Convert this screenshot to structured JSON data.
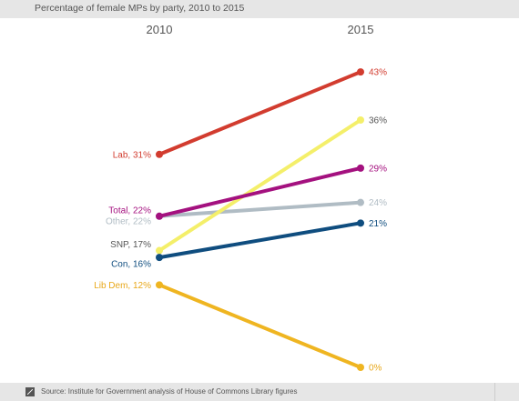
{
  "chart_data": {
    "type": "line",
    "title": "Percentage of female MPs by party, 2010 to 2015",
    "x": [
      "2010",
      "2015"
    ],
    "ylim": [
      0,
      45
    ],
    "series": [
      {
        "name": "Lab",
        "values": [
          31,
          43
        ],
        "color": "#d23c2f",
        "start_label": "Lab, 31%",
        "end_label": "43%"
      },
      {
        "name": "Total",
        "values": [
          22,
          29
        ],
        "color": "#a4117f",
        "start_label": "Total, 22%",
        "end_label": "29%"
      },
      {
        "name": "Other",
        "values": [
          22,
          24
        ],
        "color": "#b0bcc4",
        "start_label": "Other, 22%",
        "end_label": "24%"
      },
      {
        "name": "SNP",
        "values": [
          17,
          36
        ],
        "color": "#f4ef6a",
        "start_label": "SNP, 17%",
        "end_label": "36%"
      },
      {
        "name": "Con",
        "values": [
          16,
          21
        ],
        "color": "#0f4d7f",
        "start_label": "Con, 16%",
        "end_label": "21%"
      },
      {
        "name": "Lib Dem",
        "values": [
          12,
          0
        ],
        "color": "#efb521",
        "start_label": "Lib Dem, 12%",
        "end_label": "0%"
      }
    ],
    "legend": "none",
    "grid": false
  },
  "source": "Source: Institute for Government analysis of House of Commons Library figures",
  "label_colors": {
    "Lab": "#d23c2f",
    "Total": "#a4117f",
    "Other": "#b0bcc4",
    "SNP": "#555555",
    "Con": "#0f4d7f",
    "Lib Dem": "#e8a81a"
  },
  "end_label_colors": {
    "Lab": "#d23c2f",
    "Total": "#a4117f",
    "Other": "#b0bcc4",
    "SNP": "#555555",
    "Con": "#0f4d7f",
    "Lib Dem": "#e8a81a"
  }
}
